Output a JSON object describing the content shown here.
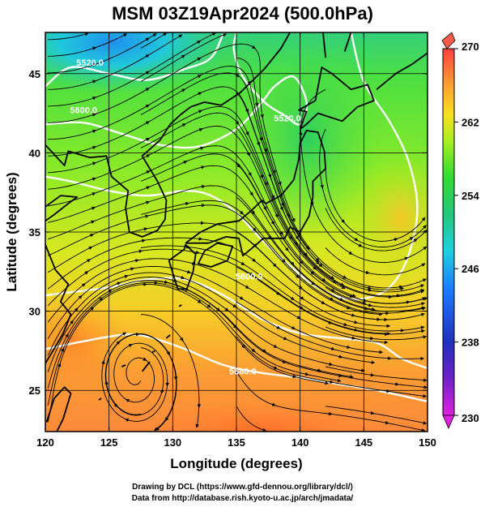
{
  "title": "MSM 03Z19Apr2024 (500.0hPa)",
  "credits": {
    "line1": "Drawing by DCL (https://www.gfd-dennou.org/library/dcl/)",
    "line2": "Data from http://database.rish.kyoto-u.ac.jp/arch/jmadata/"
  },
  "chart_data": {
    "type": "heatmap",
    "xlabel": "Longitude (degrees)",
    "ylabel": "Latitude  (degrees)",
    "xlim": [
      120,
      150
    ],
    "ylim": [
      22.4,
      47.6
    ],
    "xticks": [
      120,
      125,
      130,
      135,
      140,
      145,
      150
    ],
    "yticks": [
      25,
      30,
      35,
      40,
      45
    ],
    "grid": true,
    "colorbar": {
      "min": 230,
      "max": 270,
      "ticks": [
        230,
        238,
        246,
        254,
        262,
        270
      ],
      "colors": [
        "#e020e0",
        "#2030c0",
        "#1a80ff",
        "#20d0e0",
        "#22c87a",
        "#30dc30",
        "#a8ef20",
        "#f8e020",
        "#fca030",
        "#ff6a20",
        "#ff4040"
      ]
    },
    "contour_labels": [
      {
        "text": "5520.0",
        "lon": 123.5,
        "lat": 45.5
      },
      {
        "text": "5600.0",
        "lon": 123.0,
        "lat": 42.5
      },
      {
        "text": "5520.0",
        "lon": 139.0,
        "lat": 42.0
      },
      {
        "text": "5600.0",
        "lon": 136.0,
        "lat": 32.0
      },
      {
        "text": "5680.0",
        "lon": 135.5,
        "lat": 26.0
      }
    ]
  }
}
